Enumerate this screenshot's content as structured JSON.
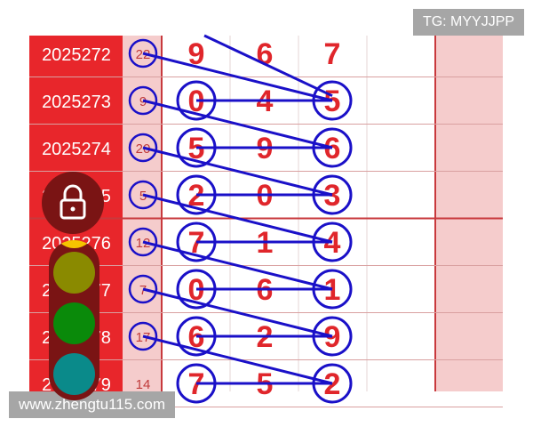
{
  "watermarks": {
    "top": "TG: MYYJJPP",
    "bottom": "www.zhengtu115.com"
  },
  "colors": {
    "period_bg": "#e8262b",
    "sum_bg": "#f5cccc",
    "digit": "#e0262b",
    "line": "#1a10c8",
    "grid": "#c8393d"
  },
  "rows": [
    {
      "period": "2025272",
      "sum": "22",
      "sum_circled": true,
      "digits": [
        "9",
        "6",
        "7"
      ],
      "digit_circles": [
        false,
        false,
        false
      ]
    },
    {
      "period": "2025273",
      "sum": "9",
      "sum_circled": true,
      "digits": [
        "0",
        "4",
        "5"
      ],
      "digit_circles": [
        true,
        false,
        true
      ]
    },
    {
      "period": "2025274",
      "sum": "20",
      "sum_circled": true,
      "digits": [
        "5",
        "9",
        "6"
      ],
      "digit_circles": [
        true,
        false,
        true
      ]
    },
    {
      "period": "2025275",
      "sum": "5",
      "sum_circled": true,
      "digits": [
        "2",
        "0",
        "3"
      ],
      "digit_circles": [
        true,
        false,
        true
      ]
    },
    {
      "period": "2025276",
      "sum": "12",
      "sum_circled": true,
      "digits": [
        "7",
        "1",
        "4"
      ],
      "digit_circles": [
        true,
        false,
        true
      ]
    },
    {
      "period": "2025277",
      "sum": "7",
      "sum_circled": true,
      "digits": [
        "0",
        "6",
        "1"
      ],
      "digit_circles": [
        true,
        false,
        true
      ]
    },
    {
      "period": "2025278",
      "sum": "17",
      "sum_circled": true,
      "digits": [
        "6",
        "2",
        "9"
      ],
      "digit_circles": [
        true,
        false,
        true
      ]
    },
    {
      "period": "2025279",
      "sum": "14",
      "sum_circled": false,
      "digits": [
        "7",
        "5",
        "2"
      ],
      "digit_circles": [
        true,
        false,
        true
      ]
    }
  ],
  "overlay": {
    "lock_icon": "lock-icon",
    "traffic_light_colors": [
      "#f5c400",
      "#8a8a00",
      "#0a8a0a",
      "#0a8a8a"
    ]
  }
}
